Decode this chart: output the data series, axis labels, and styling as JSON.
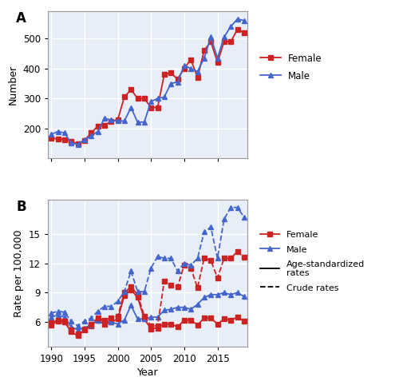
{
  "years": [
    1990,
    1991,
    1992,
    1993,
    1994,
    1995,
    1996,
    1997,
    1998,
    1999,
    2000,
    2001,
    2002,
    2003,
    2004,
    2005,
    2006,
    2007,
    2008,
    2009,
    2010,
    2011,
    2012,
    2013,
    2014,
    2015,
    2016,
    2017,
    2018,
    2019
  ],
  "female_cases": [
    168,
    165,
    163,
    157,
    148,
    160,
    185,
    208,
    210,
    224,
    229,
    305,
    330,
    300,
    300,
    270,
    270,
    380,
    385,
    365,
    400,
    430,
    370,
    460,
    490,
    420,
    490,
    490,
    530,
    520
  ],
  "male_cases": [
    180,
    190,
    185,
    152,
    147,
    163,
    175,
    190,
    234,
    228,
    225,
    225,
    270,
    220,
    222,
    290,
    300,
    305,
    350,
    355,
    410,
    400,
    390,
    435,
    505,
    435,
    505,
    540,
    565,
    560
  ],
  "female_asr": [
    5.7,
    6.1,
    6.0,
    5.0,
    4.6,
    5.2,
    5.6,
    6.2,
    5.8,
    6.0,
    6.3,
    8.7,
    9.3,
    8.5,
    6.3,
    5.3,
    5.4,
    5.8,
    5.8,
    5.5,
    6.2,
    6.2,
    5.7,
    6.4,
    6.4,
    5.8,
    6.3,
    6.2,
    6.5,
    6.1
  ],
  "male_asr": [
    6.5,
    6.7,
    6.5,
    5.5,
    5.2,
    5.4,
    5.7,
    6.2,
    6.2,
    6.0,
    5.8,
    6.2,
    7.7,
    6.3,
    6.3,
    6.5,
    6.5,
    7.2,
    7.3,
    7.5,
    7.5,
    7.3,
    7.8,
    8.5,
    8.8,
    8.8,
    9.0,
    8.8,
    9.0,
    8.6
  ],
  "female_crude": [
    5.9,
    6.2,
    6.1,
    5.2,
    4.8,
    5.3,
    5.8,
    6.4,
    6.2,
    6.4,
    6.6,
    9.0,
    9.6,
    8.8,
    6.6,
    5.6,
    5.6,
    10.2,
    9.8,
    9.6,
    11.8,
    11.5,
    9.5,
    12.5,
    12.3,
    10.5,
    12.5,
    12.5,
    13.2,
    12.6
  ],
  "male_crude": [
    6.9,
    7.1,
    7.0,
    6.1,
    5.6,
    6.1,
    6.4,
    7.1,
    7.6,
    7.6,
    8.1,
    9.1,
    11.2,
    9.1,
    9.1,
    11.5,
    12.7,
    12.5,
    12.5,
    11.2,
    12.0,
    11.8,
    12.5,
    15.2,
    15.7,
    12.5,
    16.5,
    17.7,
    17.7,
    16.7
  ],
  "female_color": "#cc2222",
  "male_color": "#4466cc",
  "bg_color": "white",
  "panel_bg": "#e8eef8",
  "grid_color": "white",
  "title_A": "A",
  "title_B": "B",
  "ylabel_A": "Number",
  "ylabel_B": "Rate per 100,000",
  "xlabel": "Year",
  "ylim_A": [
    100,
    590
  ],
  "ylim_B": [
    3.5,
    18.5
  ],
  "yticks_A": [
    200,
    300,
    400,
    500
  ],
  "yticks_B": [
    6,
    9,
    12,
    15
  ],
  "xticks": [
    1990,
    1995,
    2000,
    2005,
    2010,
    2015
  ]
}
